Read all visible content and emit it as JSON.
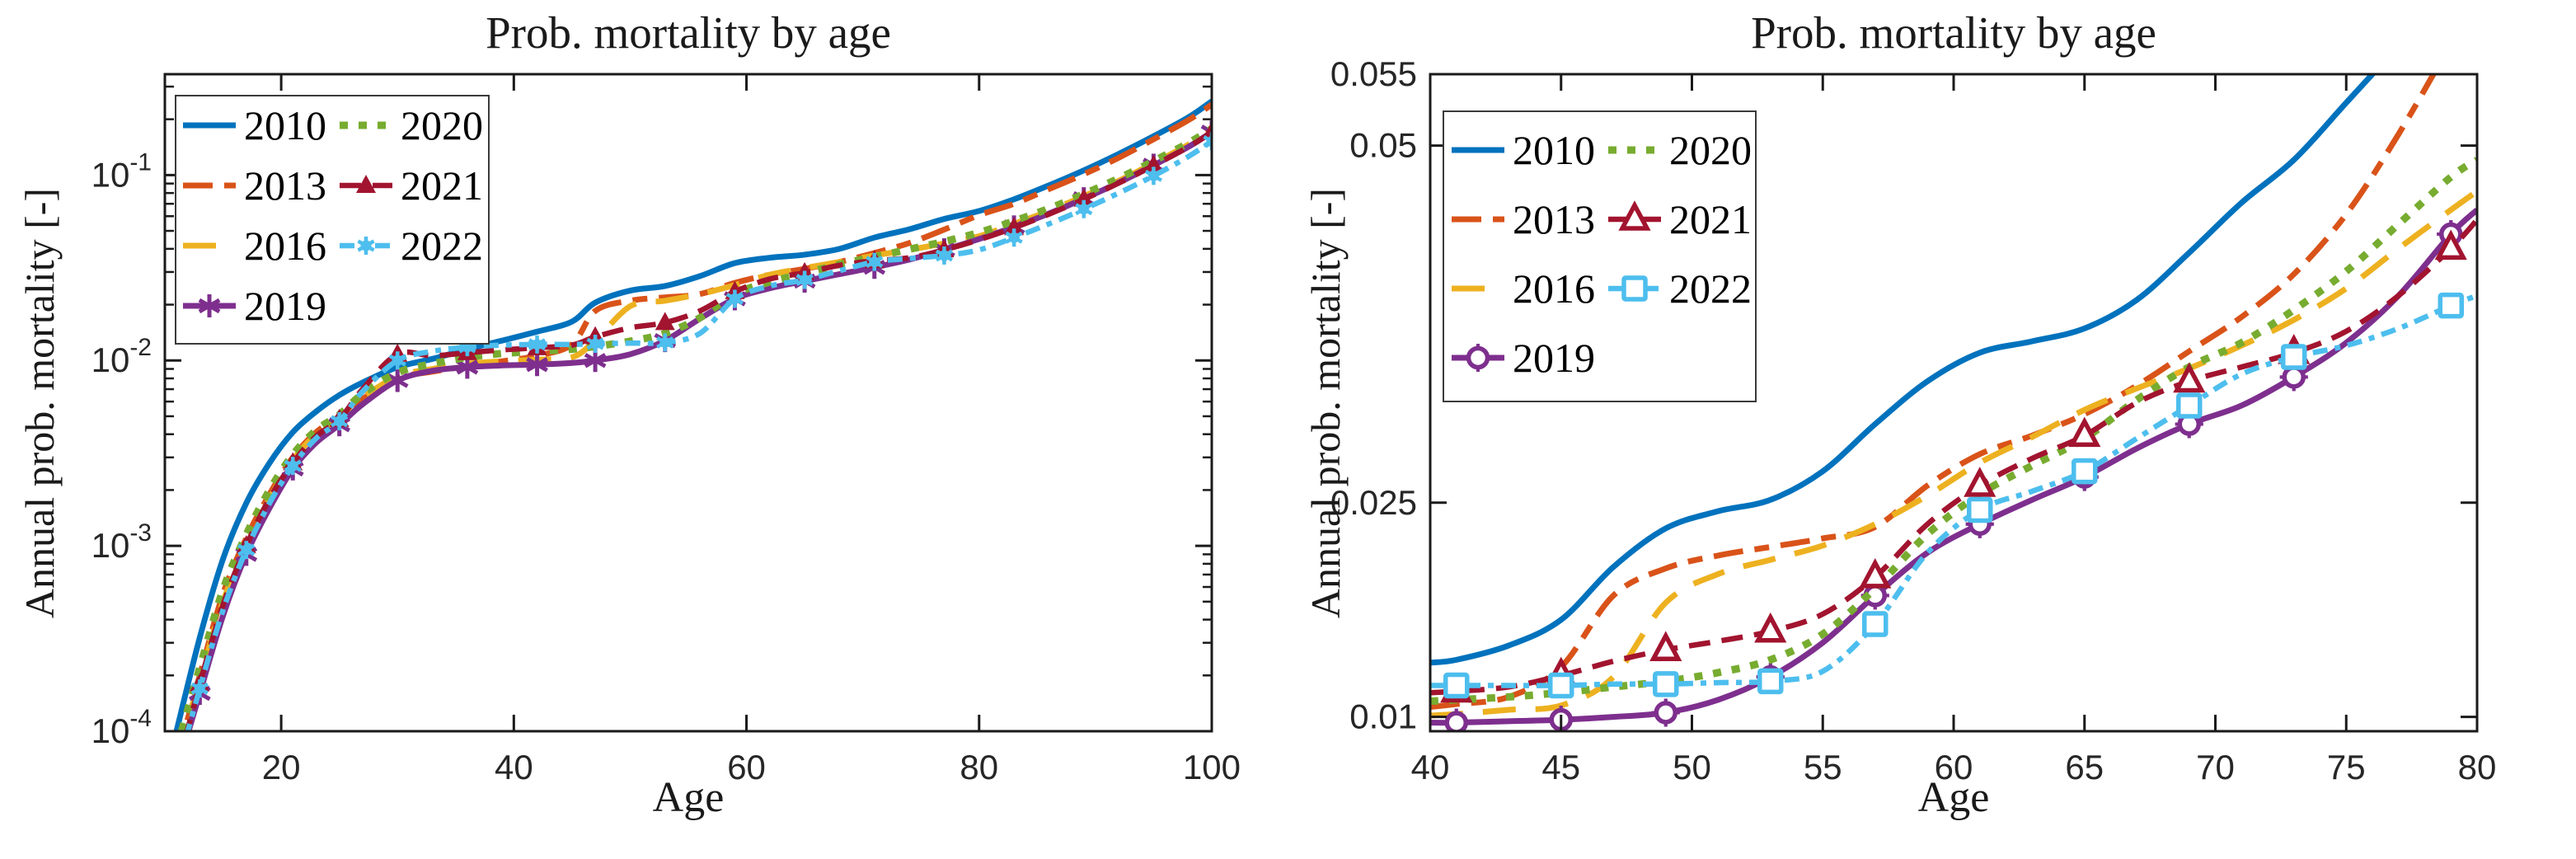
{
  "figure": {
    "background": "#ffffff",
    "axis_color": "#1a1a1a",
    "tick_text_color": "#262626",
    "legend_border_color": "#3a3a3a"
  },
  "chart_data": [
    {
      "type": "line",
      "title": "Prob. mortality by age",
      "xlabel": "Age",
      "ylabel": "Annual prob. mortality [-]",
      "yscale": "log",
      "xlim": [
        10,
        100
      ],
      "ylim": [
        0.0001,
        0.35
      ],
      "grid": false,
      "legend_position": "top-left",
      "xticks": [
        20,
        40,
        60,
        80,
        100
      ],
      "xtick_labels": [
        "20",
        "40",
        "60",
        "80",
        "100"
      ],
      "yticks": [
        0.0001,
        0.001,
        0.01,
        0.1
      ],
      "ytick_labels": [
        "10^{-4}",
        "10^{-3}",
        "10^{-2}",
        "10^{-1}"
      ],
      "x": [
        11,
        13,
        15,
        17,
        19,
        21,
        23,
        25,
        27,
        30,
        33,
        36,
        39,
        42,
        45,
        47,
        50,
        53,
        56,
        59,
        62,
        65,
        68,
        71,
        74,
        77,
        80,
        83,
        86,
        89,
        92,
        95,
        98,
        100
      ],
      "marker_indices": [
        1,
        3,
        5,
        7,
        9,
        11,
        13,
        15,
        17,
        19,
        21,
        23,
        25,
        27,
        29,
        31,
        33
      ],
      "series": [
        {
          "name": "2010",
          "color": "#0072BD",
          "style": "solid",
          "width": 7,
          "marker": null,
          "values": [
            0.0001,
            0.00032,
            0.00085,
            0.0017,
            0.0028,
            0.0041,
            0.0053,
            0.0065,
            0.0076,
            0.0092,
            0.0102,
            0.0115,
            0.0128,
            0.0143,
            0.0162,
            0.0205,
            0.0238,
            0.0252,
            0.0285,
            0.0335,
            0.0358,
            0.0372,
            0.04,
            0.046,
            0.051,
            0.058,
            0.064,
            0.074,
            0.088,
            0.106,
            0.13,
            0.162,
            0.205,
            0.25
          ]
        },
        {
          "name": "2013",
          "color": "#D95319",
          "style": "dashdot",
          "width": 7,
          "marker": null,
          "values": [
            7e-05,
            0.0002,
            0.00055,
            0.0011,
            0.0019,
            0.003,
            0.0041,
            0.005,
            0.0062,
            0.008,
            0.0087,
            0.0093,
            0.0099,
            0.0106,
            0.0122,
            0.0185,
            0.021,
            0.0219,
            0.0228,
            0.0262,
            0.029,
            0.0312,
            0.034,
            0.038,
            0.043,
            0.0508,
            0.0608,
            0.07,
            0.084,
            0.101,
            0.124,
            0.156,
            0.198,
            0.24
          ]
        },
        {
          "name": "2016",
          "color": "#EDB120",
          "style": "dashed",
          "width": 7,
          "marker": null,
          "values": [
            7e-05,
            0.00019,
            0.0005,
            0.001,
            0.0018,
            0.0029,
            0.004,
            0.0049,
            0.0063,
            0.0082,
            0.009,
            0.0096,
            0.0099,
            0.0101,
            0.0104,
            0.0128,
            0.0196,
            0.021,
            0.0228,
            0.0255,
            0.029,
            0.0315,
            0.034,
            0.0368,
            0.0395,
            0.0428,
            0.0468,
            0.0545,
            0.064,
            0.077,
            0.093,
            0.116,
            0.146,
            0.175
          ]
        },
        {
          "name": "2019",
          "color": "#7E2F8E",
          "style": "solid",
          "width": 7,
          "marker": "asterisk",
          "values": [
            6e-05,
            0.00016,
            0.00042,
            0.0009,
            0.0016,
            0.0026,
            0.0036,
            0.0045,
            0.0058,
            0.0078,
            0.0088,
            0.0092,
            0.0094,
            0.0095,
            0.0097,
            0.01,
            0.0108,
            0.0128,
            0.0168,
            0.0215,
            0.0245,
            0.0268,
            0.0292,
            0.0318,
            0.035,
            0.0395,
            0.0452,
            0.0525,
            0.062,
            0.0745,
            0.091,
            0.113,
            0.142,
            0.1705
          ]
        },
        {
          "name": "2020",
          "color": "#77AC30",
          "style": "dotted",
          "width": 9,
          "marker": null,
          "values": [
            8e-05,
            0.00022,
            0.00058,
            0.00115,
            0.002,
            0.0031,
            0.0042,
            0.0051,
            0.0066,
            0.0086,
            0.0096,
            0.0104,
            0.0109,
            0.0112,
            0.0115,
            0.0119,
            0.0127,
            0.014,
            0.017,
            0.0228,
            0.0265,
            0.0295,
            0.033,
            0.0362,
            0.0398,
            0.0438,
            0.049,
            0.0565,
            0.066,
            0.079,
            0.096,
            0.119,
            0.149,
            0.178
          ]
        },
        {
          "name": "2021",
          "color": "#A2142F",
          "style": "dashed2",
          "width": 6.5,
          "marker": "tri-filled",
          "values": [
            6e-05,
            0.00018,
            0.00048,
            0.001,
            0.0018,
            0.0028,
            0.0039,
            0.0048,
            0.007,
            0.0108,
            0.0106,
            0.011,
            0.0114,
            0.0117,
            0.0121,
            0.0134,
            0.015,
            0.016,
            0.0185,
            0.0235,
            0.0275,
            0.0297,
            0.0326,
            0.0345,
            0.0358,
            0.0395,
            0.0448,
            0.052,
            0.0615,
            0.074,
            0.0905,
            0.1125,
            0.142,
            0.17
          ]
        },
        {
          "name": "2022",
          "color": "#4DBEEE",
          "style": "dashdot2",
          "width": 6.5,
          "marker": "dotstar",
          "values": [
            6e-05,
            0.00017,
            0.00045,
            0.00095,
            0.0017,
            0.0027,
            0.0038,
            0.0047,
            0.0068,
            0.01,
            0.0112,
            0.0118,
            0.0121,
            0.0122,
            0.0122,
            0.0123,
            0.0124,
            0.0125,
            0.014,
            0.0215,
            0.0252,
            0.0272,
            0.0305,
            0.034,
            0.0355,
            0.0368,
            0.0395,
            0.046,
            0.0545,
            0.0655,
            0.08,
            0.099,
            0.126,
            0.152
          ]
        }
      ]
    },
    {
      "type": "line",
      "title": "Prob. mortality by age",
      "xlabel": "Age",
      "ylabel": "Annual prob. mortality [-]",
      "yscale": "linear",
      "xlim": [
        40,
        80
      ],
      "ylim": [
        0.009,
        0.055
      ],
      "grid": false,
      "legend_position": "top-left",
      "xticks": [
        40,
        45,
        50,
        55,
        60,
        65,
        70,
        75,
        80
      ],
      "xtick_labels": [
        "40",
        "45",
        "50",
        "55",
        "60",
        "65",
        "70",
        "75",
        "80"
      ],
      "yticks": [
        0.01,
        0.025,
        0.05,
        0.055
      ],
      "ytick_labels": [
        "0.01",
        "0.025",
        "0.05",
        "0.055"
      ],
      "x": [
        40,
        41,
        43,
        45,
        47,
        49,
        51,
        53,
        55,
        57,
        59,
        61,
        63,
        65,
        67,
        69,
        71,
        73,
        75,
        77,
        79,
        80
      ],
      "marker_indices": [
        1,
        3,
        5,
        7,
        9,
        11,
        13,
        15,
        17,
        20
      ],
      "series": [
        {
          "name": "2010",
          "color": "#0072BD",
          "style": "solid",
          "width": 7,
          "marker": null,
          "values": [
            0.0138,
            0.014,
            0.015,
            0.0168,
            0.0205,
            0.0232,
            0.0244,
            0.0252,
            0.0272,
            0.0305,
            0.0335,
            0.0355,
            0.0363,
            0.0372,
            0.0392,
            0.0425,
            0.046,
            0.049,
            0.053,
            0.057,
            0.061,
            0.063
          ]
        },
        {
          "name": "2013",
          "color": "#D95319",
          "style": "dashdot",
          "width": 7,
          "marker": null,
          "values": [
            0.0107,
            0.0109,
            0.0114,
            0.0135,
            0.0185,
            0.0204,
            0.0213,
            0.0219,
            0.0225,
            0.0233,
            0.0262,
            0.0284,
            0.0297,
            0.0312,
            0.0332,
            0.0356,
            0.038,
            0.041,
            0.0452,
            0.0508,
            0.0572,
            0.0608
          ]
        },
        {
          "name": "2016",
          "color": "#EDB120",
          "style": "dashed",
          "width": 7,
          "marker": null,
          "values": [
            0.0101,
            0.0102,
            0.0105,
            0.0108,
            0.0128,
            0.018,
            0.02,
            0.021,
            0.022,
            0.0235,
            0.0255,
            0.0278,
            0.0296,
            0.0315,
            0.033,
            0.0344,
            0.036,
            0.0378,
            0.04,
            0.0428,
            0.0455,
            0.0468
          ]
        },
        {
          "name": "2019",
          "color": "#7E2F8E",
          "style": "solid",
          "width": 7,
          "marker": "circlestar",
          "values": [
            0.0096,
            0.0096,
            0.0097,
            0.0098,
            0.01,
            0.0103,
            0.0112,
            0.0128,
            0.0152,
            0.0185,
            0.0215,
            0.0235,
            0.0252,
            0.0268,
            0.0288,
            0.0305,
            0.0318,
            0.0338,
            0.0362,
            0.0395,
            0.0438,
            0.0455
          ]
        },
        {
          "name": "2020",
          "color": "#77AC30",
          "style": "dotted",
          "width": 9,
          "marker": null,
          "values": [
            0.0111,
            0.0112,
            0.0114,
            0.0117,
            0.0121,
            0.0125,
            0.0131,
            0.014,
            0.0158,
            0.019,
            0.0228,
            0.0256,
            0.0276,
            0.0295,
            0.0322,
            0.0345,
            0.0362,
            0.0385,
            0.0412,
            0.0445,
            0.0478,
            0.049
          ]
        },
        {
          "name": "2021",
          "color": "#A2142F",
          "style": "dashed2",
          "width": 6.5,
          "marker": "tri-open",
          "values": [
            0.0117,
            0.0118,
            0.0121,
            0.0129,
            0.0139,
            0.0147,
            0.0153,
            0.016,
            0.0172,
            0.0198,
            0.0235,
            0.0262,
            0.0281,
            0.0297,
            0.032,
            0.0335,
            0.0345,
            0.0355,
            0.037,
            0.0395,
            0.0428,
            0.0448
          ]
        },
        {
          "name": "2022",
          "color": "#4DBEEE",
          "style": "dashdot2",
          "width": 6.5,
          "marker": "sq-open",
          "values": [
            0.0122,
            0.0122,
            0.0122,
            0.0122,
            0.0123,
            0.0123,
            0.0124,
            0.0125,
            0.0132,
            0.0165,
            0.0215,
            0.0245,
            0.0258,
            0.0272,
            0.0295,
            0.0318,
            0.034,
            0.0352,
            0.036,
            0.0372,
            0.0388,
            0.0395
          ]
        }
      ]
    }
  ]
}
